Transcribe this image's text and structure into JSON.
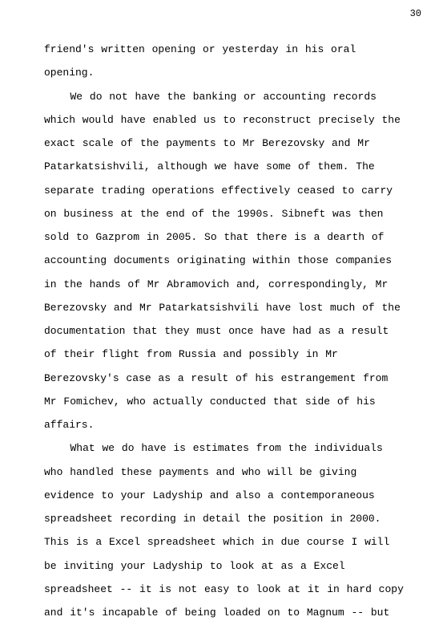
{
  "page_number": "30",
  "paragraphs": [
    {
      "type": "continuation",
      "text": "friend's written opening or yesterday in his oral opening."
    },
    {
      "type": "paragraph",
      "text": "We do not have the banking or accounting records which would have enabled us to reconstruct precisely the exact scale of the payments to Mr Berezovsky and Mr Patarkatsishvili, although we have some of them.  The separate trading operations effectively ceased to carry on business at the end of the 1990s.  Sibneft was then sold to Gazprom in 2005.  So that there is a dearth of accounting documents originating within those companies in the hands of Mr Abramovich and, correspondingly, Mr Berezovsky and Mr Patarkatsishvili have lost much of the documentation that they must once have had as a result of their flight from Russia and possibly in Mr Berezovsky's case as a result of his estrangement from Mr Fomichev, who actually conducted that side of his affairs."
    },
    {
      "type": "paragraph",
      "text": "What we do have is estimates from the individuals who handled these payments and who will be giving evidence to your Ladyship and also a contemporaneous spreadsheet recording in detail the position in 2000. This is a Excel spreadsheet which in due course I will be inviting your Ladyship to look at as a Excel spreadsheet -- it is not easy to look at it in hard copy and it's incapable of being loaded on to Magnum -- but"
    }
  ]
}
